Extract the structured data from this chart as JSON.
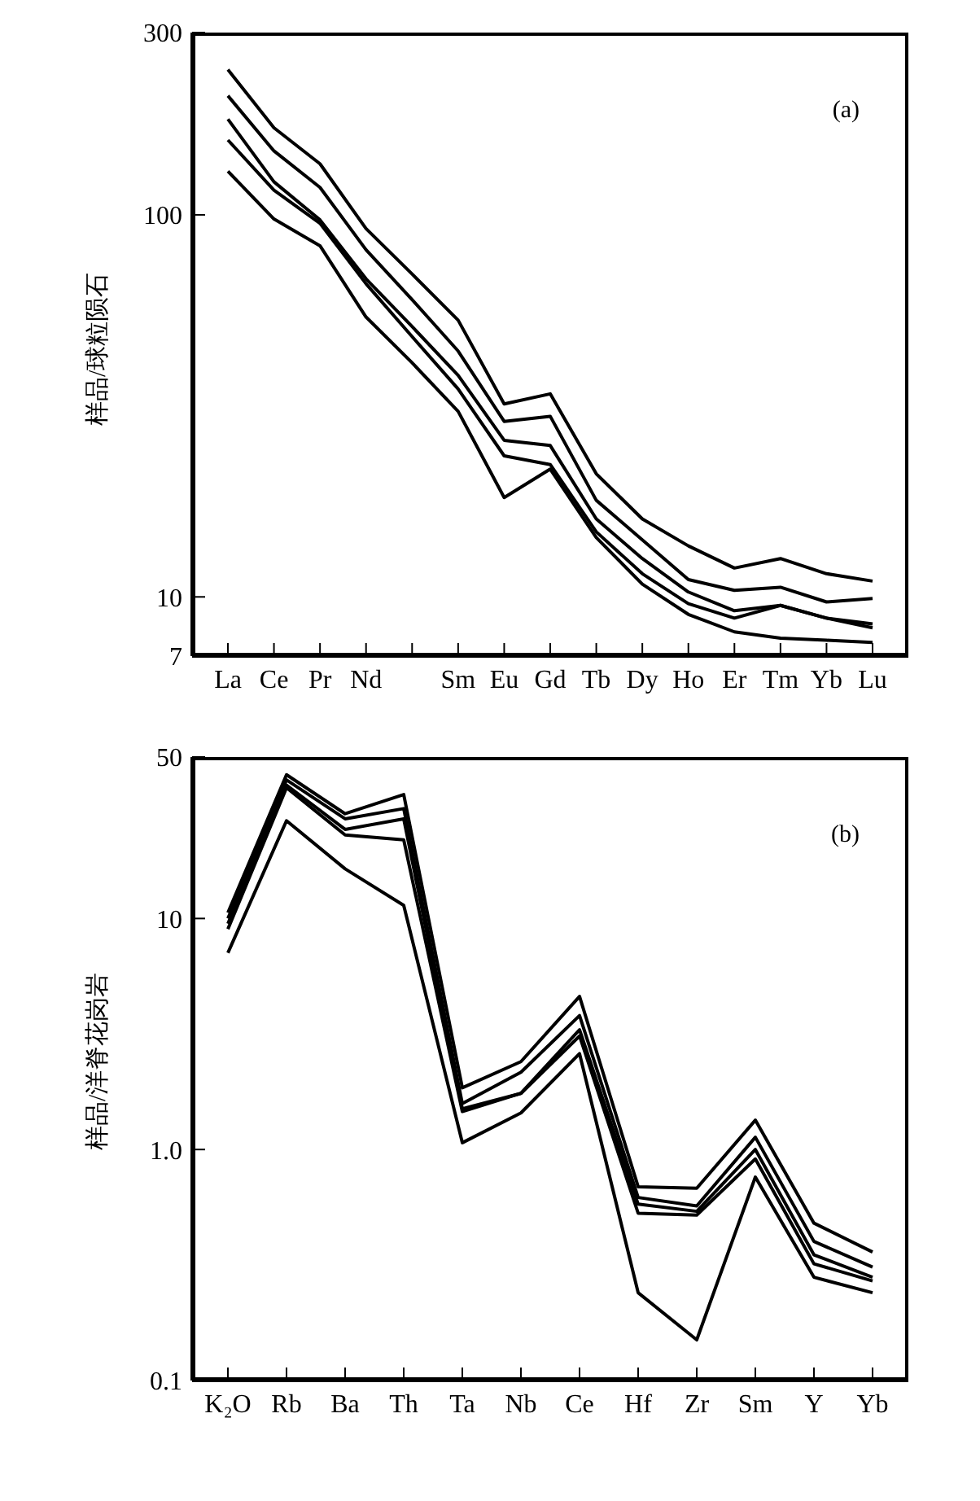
{
  "chart_data": [
    {
      "type": "line",
      "ylabel": "样品/球粒陨石",
      "annotations": [
        "(a)"
      ],
      "log": true,
      "ylim": [
        7,
        300
      ],
      "yticks": [
        7,
        10,
        100,
        300
      ],
      "categories": [
        "La",
        "Ce",
        "Pr",
        "Nd",
        null,
        "Sm",
        "Eu",
        "Gd",
        "Tb",
        "Dy",
        "Ho",
        "Er",
        "Tm",
        "Yb",
        "Lu"
      ],
      "series": [
        {
          "color": "#000000",
          "values": [
            240,
            169,
            136,
            92,
            70,
            53,
            32,
            34,
            21,
            16,
            13.6,
            11.9,
            12.6,
            11.5,
            11
          ]
        },
        {
          "color": "#000000",
          "values": [
            205,
            147,
            118,
            81,
            60,
            44,
            28.8,
            29.7,
            17.9,
            14.1,
            11.1,
            10.4,
            10.6,
            9.7,
            9.9
          ]
        },
        {
          "color": "#000000",
          "values": [
            178,
            122,
            97,
            68,
            51,
            38,
            25.7,
            24.9,
            16,
            12.6,
            10.3,
            9.2,
            9.5,
            8.8,
            8.5
          ]
        },
        {
          "color": "#000000",
          "values": [
            157,
            116,
            95,
            66,
            48,
            35,
            23.4,
            22.2,
            14.8,
            11.5,
            9.6,
            8.8,
            9.5,
            8.8,
            8.3
          ]
        },
        {
          "color": "#000000",
          "values": [
            130,
            97.5,
            83,
            54,
            41,
            30.6,
            18.2,
            21.6,
            14.3,
            10.8,
            9,
            8.1,
            7.8,
            7.7,
            7.6
          ]
        }
      ]
    },
    {
      "type": "line",
      "ylabel": "样品/洋脊花岗岩",
      "annotations": [
        "(b)"
      ],
      "log": true,
      "ylim": [
        0.1,
        50
      ],
      "yticks": [
        0.1,
        {
          "value": 1,
          "label": "1.0"
        },
        10,
        50
      ],
      "categories": [
        "K₂O",
        "Rb",
        "Ba",
        "Th",
        "Ta",
        "Nb",
        "Ce",
        "Hf",
        "Zr",
        "Sm",
        "Y",
        "Yb"
      ],
      "series": [
        {
          "color": "#000000",
          "values": [
            10.6,
            41.9,
            28.4,
            34.4,
            1.85,
            2.4,
            4.6,
            0.69,
            0.68,
            1.34,
            0.48,
            0.36
          ]
        },
        {
          "color": "#000000",
          "values": [
            10,
            39.8,
            27,
            29.9,
            1.58,
            2.16,
            3.8,
            0.62,
            0.57,
            1.13,
            0.4,
            0.31
          ]
        },
        {
          "color": "#000000",
          "values": [
            9.5,
            37.8,
            24.3,
            27,
            1.5,
            1.75,
            3.3,
            0.58,
            0.54,
            1,
            0.35,
            0.28
          ]
        },
        {
          "color": "#000000",
          "values": [
            9,
            36.8,
            23,
            21.9,
            1.46,
            1.75,
            3.1,
            0.53,
            0.52,
            0.91,
            0.32,
            0.27
          ]
        },
        {
          "color": "#000000",
          "values": [
            7.1,
            26.5,
            16.4,
            11.4,
            1.07,
            1.44,
            2.6,
            0.24,
            0.15,
            0.76,
            0.28,
            0.24
          ]
        }
      ]
    }
  ]
}
